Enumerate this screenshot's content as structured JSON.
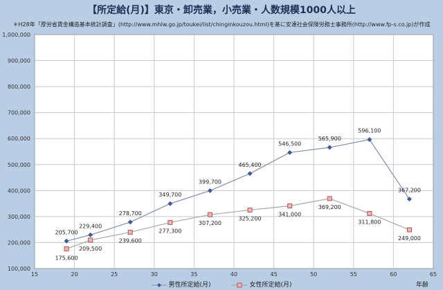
{
  "chart_data": {
    "type": "line",
    "title": "【所定給(月)】東京・卸売業，小売業・人数規模1000人以上",
    "subtitle": "＊H28年「厚労省賃金構造基本統計調査」(http://www.mhlw.go.jp/toukei/list/chinginkouzou.html)を基に安達社会保険労務士事務所(http://www.fp-s.co.jp)が作成",
    "xlabel": "年齢",
    "ylabel": "",
    "xlim": [
      15,
      65
    ],
    "ylim": [
      100000,
      1000000
    ],
    "x_ticks": [
      15,
      20,
      25,
      30,
      35,
      40,
      45,
      50,
      55,
      60,
      65
    ],
    "y_ticks": [
      100000,
      200000,
      300000,
      400000,
      500000,
      600000,
      700000,
      800000,
      900000,
      1000000
    ],
    "y_tick_labels": [
      "100,000",
      "200,000",
      "300,000",
      "400,000",
      "500,000",
      "600,000",
      "700,000",
      "800,000",
      "900,000",
      "1,000,000"
    ],
    "grid": true,
    "legend_position": "bottom",
    "series": [
      {
        "name": "男性所定給(月)",
        "color": "#3e5a9a",
        "marker": "diamond",
        "x": [
          19,
          22,
          27,
          32,
          37,
          42,
          47,
          52,
          57,
          62
        ],
        "values": [
          205700,
          229400,
          278700,
          349700,
          399700,
          465400,
          546500,
          565900,
          596100,
          367200
        ],
        "labels": [
          "205,700",
          "229,400",
          "278,700",
          "349,700",
          "399,700",
          "465,400",
          "546,500",
          "565,900",
          "596,100",
          "367,200"
        ]
      },
      {
        "name": "女性所定給(月)",
        "color": "#c0504d",
        "marker": "square",
        "x": [
          19,
          22,
          27,
          32,
          37,
          42,
          47,
          52,
          57,
          62
        ],
        "values": [
          175600,
          209500,
          239600,
          277300,
          307200,
          325200,
          341000,
          369200,
          311800,
          249000
        ],
        "labels": [
          "175,600",
          "209,500",
          "239,600",
          "277,300",
          "307,200",
          "325,200",
          "341,000",
          "369,200",
          "311,800",
          "249,000"
        ]
      }
    ]
  }
}
